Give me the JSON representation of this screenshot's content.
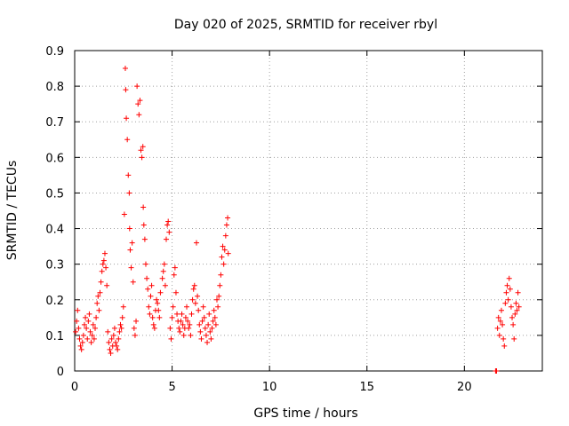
{
  "chart_data": {
    "type": "scatter",
    "title": "Day 020 of 2025, SRMTID for receiver rbyl",
    "xlabel": "GPS time / hours",
    "ylabel": "SRMTID / TECUs",
    "xlim": [
      0,
      24
    ],
    "ylim": [
      0,
      0.9
    ],
    "xticks": [
      0,
      5,
      10,
      15,
      20
    ],
    "yticks": [
      0,
      0.1,
      0.2,
      0.3,
      0.4,
      0.5,
      0.6,
      0.7,
      0.8,
      0.9
    ],
    "grid": true,
    "marker": "plus",
    "color": "#ff0000",
    "series": [
      {
        "name": "SRMTID",
        "points": [
          [
            0.05,
            0.11
          ],
          [
            0.1,
            0.14
          ],
          [
            0.15,
            0.17
          ],
          [
            0.2,
            0.12
          ],
          [
            0.25,
            0.09
          ],
          [
            0.3,
            0.07
          ],
          [
            0.35,
            0.06
          ],
          [
            0.4,
            0.08
          ],
          [
            0.45,
            0.1
          ],
          [
            0.5,
            0.13
          ],
          [
            0.55,
            0.15
          ],
          [
            0.6,
            0.12
          ],
          [
            0.65,
            0.09
          ],
          [
            0.7,
            0.14
          ],
          [
            0.75,
            0.16
          ],
          [
            0.8,
            0.11
          ],
          [
            0.85,
            0.08
          ],
          [
            0.9,
            0.1
          ],
          [
            0.95,
            0.13
          ],
          [
            1.0,
            0.09
          ],
          [
            1.05,
            0.12
          ],
          [
            1.1,
            0.15
          ],
          [
            1.15,
            0.19
          ],
          [
            1.2,
            0.21
          ],
          [
            1.25,
            0.17
          ],
          [
            1.3,
            0.22
          ],
          [
            1.35,
            0.25
          ],
          [
            1.4,
            0.28
          ],
          [
            1.45,
            0.3
          ],
          [
            1.5,
            0.31
          ],
          [
            1.55,
            0.33
          ],
          [
            1.6,
            0.29
          ],
          [
            1.65,
            0.24
          ],
          [
            1.7,
            0.11
          ],
          [
            1.75,
            0.08
          ],
          [
            1.8,
            0.06
          ],
          [
            1.85,
            0.05
          ],
          [
            1.9,
            0.09
          ],
          [
            1.95,
            0.07
          ],
          [
            2.0,
            0.1
          ],
          [
            2.05,
            0.12
          ],
          [
            2.1,
            0.08
          ],
          [
            2.15,
            0.07
          ],
          [
            2.2,
            0.06
          ],
          [
            2.25,
            0.09
          ],
          [
            2.3,
            0.11
          ],
          [
            2.35,
            0.13
          ],
          [
            2.4,
            0.12
          ],
          [
            2.45,
            0.15
          ],
          [
            2.5,
            0.18
          ],
          [
            2.55,
            0.44
          ],
          [
            2.6,
            0.85
          ],
          [
            2.62,
            0.79
          ],
          [
            2.65,
            0.71
          ],
          [
            2.7,
            0.65
          ],
          [
            2.75,
            0.55
          ],
          [
            2.8,
            0.5
          ],
          [
            2.82,
            0.4
          ],
          [
            2.85,
            0.34
          ],
          [
            2.9,
            0.29
          ],
          [
            2.95,
            0.36
          ],
          [
            3.0,
            0.25
          ],
          [
            3.05,
            0.12
          ],
          [
            3.1,
            0.1
          ],
          [
            3.15,
            0.14
          ],
          [
            3.2,
            0.8
          ],
          [
            3.25,
            0.75
          ],
          [
            3.3,
            0.72
          ],
          [
            3.35,
            0.76
          ],
          [
            3.4,
            0.62
          ],
          [
            3.45,
            0.6
          ],
          [
            3.5,
            0.63
          ],
          [
            3.52,
            0.46
          ],
          [
            3.55,
            0.41
          ],
          [
            3.6,
            0.37
          ],
          [
            3.65,
            0.3
          ],
          [
            3.7,
            0.26
          ],
          [
            3.75,
            0.23
          ],
          [
            3.8,
            0.18
          ],
          [
            3.85,
            0.16
          ],
          [
            3.9,
            0.21
          ],
          [
            3.95,
            0.24
          ],
          [
            4.0,
            0.15
          ],
          [
            4.05,
            0.13
          ],
          [
            4.1,
            0.12
          ],
          [
            4.15,
            0.17
          ],
          [
            4.2,
            0.2
          ],
          [
            4.25,
            0.19
          ],
          [
            4.3,
            0.17
          ],
          [
            4.35,
            0.15
          ],
          [
            4.4,
            0.22
          ],
          [
            4.5,
            0.26
          ],
          [
            4.55,
            0.28
          ],
          [
            4.6,
            0.3
          ],
          [
            4.65,
            0.24
          ],
          [
            4.7,
            0.37
          ],
          [
            4.75,
            0.41
          ],
          [
            4.8,
            0.42
          ],
          [
            4.85,
            0.39
          ],
          [
            4.9,
            0.12
          ],
          [
            4.95,
            0.09
          ],
          [
            5.0,
            0.15
          ],
          [
            5.05,
            0.18
          ],
          [
            5.1,
            0.27
          ],
          [
            5.15,
            0.29
          ],
          [
            5.2,
            0.22
          ],
          [
            5.25,
            0.16
          ],
          [
            5.3,
            0.14
          ],
          [
            5.35,
            0.12
          ],
          [
            5.4,
            0.11
          ],
          [
            5.45,
            0.14
          ],
          [
            5.5,
            0.16
          ],
          [
            5.55,
            0.13
          ],
          [
            5.6,
            0.1
          ],
          [
            5.65,
            0.12
          ],
          [
            5.7,
            0.15
          ],
          [
            5.75,
            0.18
          ],
          [
            5.8,
            0.14
          ],
          [
            5.85,
            0.12
          ],
          [
            5.9,
            0.13
          ],
          [
            5.95,
            0.1
          ],
          [
            6.0,
            0.16
          ],
          [
            6.05,
            0.2
          ],
          [
            6.1,
            0.23
          ],
          [
            6.15,
            0.24
          ],
          [
            6.2,
            0.19
          ],
          [
            6.25,
            0.36
          ],
          [
            6.3,
            0.21
          ],
          [
            6.35,
            0.17
          ],
          [
            6.4,
            0.13
          ],
          [
            6.45,
            0.11
          ],
          [
            6.5,
            0.09
          ],
          [
            6.55,
            0.14
          ],
          [
            6.6,
            0.18
          ],
          [
            6.65,
            0.15
          ],
          [
            6.7,
            0.12
          ],
          [
            6.75,
            0.1
          ],
          [
            6.8,
            0.08
          ],
          [
            6.85,
            0.13
          ],
          [
            6.9,
            0.16
          ],
          [
            6.95,
            0.11
          ],
          [
            7.0,
            0.09
          ],
          [
            7.05,
            0.12
          ],
          [
            7.1,
            0.14
          ],
          [
            7.15,
            0.17
          ],
          [
            7.2,
            0.15
          ],
          [
            7.25,
            0.13
          ],
          [
            7.3,
            0.2
          ],
          [
            7.35,
            0.18
          ],
          [
            7.4,
            0.21
          ],
          [
            7.45,
            0.24
          ],
          [
            7.5,
            0.27
          ],
          [
            7.55,
            0.32
          ],
          [
            7.6,
            0.35
          ],
          [
            7.65,
            0.3
          ],
          [
            7.7,
            0.34
          ],
          [
            7.75,
            0.38
          ],
          [
            7.8,
            0.41
          ],
          [
            7.85,
            0.43
          ],
          [
            7.88,
            0.33
          ],
          [
            21.6,
            0.0
          ],
          [
            21.65,
            0.0
          ],
          [
            21.7,
            0.12
          ],
          [
            21.75,
            0.15
          ],
          [
            21.8,
            0.1
          ],
          [
            21.85,
            0.14
          ],
          [
            21.9,
            0.17
          ],
          [
            21.95,
            0.13
          ],
          [
            22.0,
            0.09
          ],
          [
            22.05,
            0.07
          ],
          [
            22.1,
            0.19
          ],
          [
            22.15,
            0.22
          ],
          [
            22.2,
            0.24
          ],
          [
            22.25,
            0.2
          ],
          [
            22.3,
            0.26
          ],
          [
            22.35,
            0.23
          ],
          [
            22.4,
            0.18
          ],
          [
            22.45,
            0.15
          ],
          [
            22.5,
            0.13
          ],
          [
            22.55,
            0.09
          ],
          [
            22.6,
            0.16
          ],
          [
            22.65,
            0.19
          ],
          [
            22.7,
            0.17
          ],
          [
            22.75,
            0.22
          ],
          [
            22.8,
            0.18
          ]
        ]
      }
    ]
  }
}
